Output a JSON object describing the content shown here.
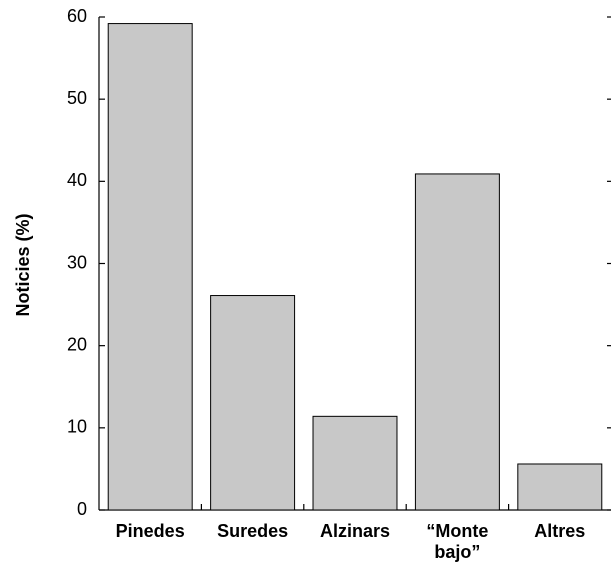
{
  "chart_data": {
    "type": "bar",
    "y_label": "Noticies (%)",
    "categories": [
      "Pinedes",
      "Suredes",
      "Alzinars",
      "“Monte bajo”",
      "Altres"
    ],
    "values": [
      59.2,
      26.1,
      11.4,
      40.9,
      5.6
    ],
    "color": "#c8c8c8",
    "ylim": [
      0,
      60
    ],
    "yticks": [
      0,
      10,
      20,
      30,
      40,
      50,
      60
    ],
    "grid": false
  }
}
